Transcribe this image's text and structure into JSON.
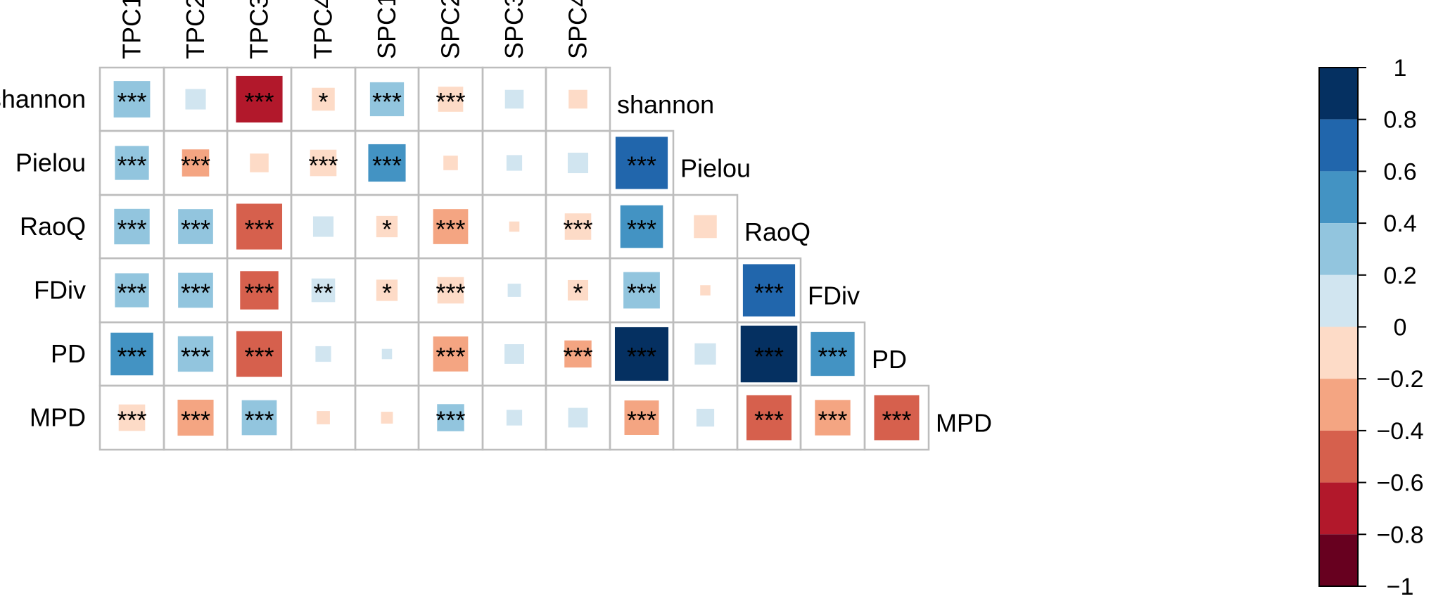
{
  "chart_data": {
    "type": "heatmap",
    "title": "",
    "columns": [
      "TPC1",
      "TPC2",
      "TPC3",
      "TPC4",
      "SPC1",
      "SPC2",
      "SPC3",
      "SPC4"
    ],
    "rows": [
      "shannon",
      "Pielou",
      "RaoQ",
      "FDiv",
      "PD",
      "MPD"
    ],
    "diagonal_labels": [
      "shannon",
      "Pielou",
      "RaoQ",
      "FDiv",
      "PD",
      "MPD"
    ],
    "value_range": [
      -1,
      1
    ],
    "colorbar": {
      "ticks": [
        "1",
        "0.8",
        "0.6",
        "0.4",
        "0.2",
        "0",
        "−0.2",
        "−0.4",
        "−0.6",
        "−0.8",
        "−1"
      ],
      "tick_values": [
        1,
        0.8,
        0.6,
        0.4,
        0.2,
        0,
        -0.2,
        -0.4,
        -0.6,
        -0.8,
        -1
      ],
      "bins": [
        {
          "from": 0.8,
          "to": 1.0,
          "color": "#053061"
        },
        {
          "from": 0.6,
          "to": 0.8,
          "color": "#2166AC"
        },
        {
          "from": 0.4,
          "to": 0.6,
          "color": "#4393C3"
        },
        {
          "from": 0.2,
          "to": 0.4,
          "color": "#92C5DE"
        },
        {
          "from": 0.0,
          "to": 0.2,
          "color": "#D1E5F0"
        },
        {
          "from": -0.2,
          "to": 0.0,
          "color": "#FDDBC7"
        },
        {
          "from": -0.4,
          "to": -0.2,
          "color": "#F4A582"
        },
        {
          "from": -0.6,
          "to": -0.4,
          "color": "#D6604D"
        },
        {
          "from": -0.8,
          "to": -0.6,
          "color": "#B2182B"
        },
        {
          "from": -1.0,
          "to": -0.8,
          "color": "#67001F"
        }
      ]
    },
    "cells": [
      [
        {
          "v": 0.38,
          "sig": "***"
        },
        {
          "v": 0.12,
          "sig": ""
        },
        {
          "v": -0.62,
          "sig": "***"
        },
        {
          "v": -0.15,
          "sig": "*"
        },
        {
          "v": 0.33,
          "sig": "***"
        },
        {
          "v": -0.18,
          "sig": "***"
        },
        {
          "v": 0.1,
          "sig": ""
        },
        {
          "v": -0.1,
          "sig": ""
        }
      ],
      [
        {
          "v": 0.33,
          "sig": "***"
        },
        {
          "v": -0.21,
          "sig": "***"
        },
        {
          "v": -0.1,
          "sig": ""
        },
        {
          "v": -0.2,
          "sig": "***"
        },
        {
          "v": 0.4,
          "sig": "***"
        },
        {
          "v": -0.06,
          "sig": ""
        },
        {
          "v": 0.07,
          "sig": ""
        },
        {
          "v": 0.12,
          "sig": ""
        }
      ],
      [
        {
          "v": 0.36,
          "sig": "***"
        },
        {
          "v": 0.35,
          "sig": "***"
        },
        {
          "v": -0.6,
          "sig": "***"
        },
        {
          "v": 0.12,
          "sig": ""
        },
        {
          "v": -0.13,
          "sig": "*"
        },
        {
          "v": -0.35,
          "sig": "***"
        },
        {
          "v": -0.03,
          "sig": ""
        },
        {
          "v": -0.2,
          "sig": "***"
        }
      ],
      [
        {
          "v": 0.33,
          "sig": "***"
        },
        {
          "v": 0.35,
          "sig": "***"
        },
        {
          "v": -0.42,
          "sig": "***"
        },
        {
          "v": 0.16,
          "sig": "**"
        },
        {
          "v": -0.13,
          "sig": "*"
        },
        {
          "v": -0.2,
          "sig": "***"
        },
        {
          "v": 0.05,
          "sig": ""
        },
        {
          "v": -0.12,
          "sig": "*"
        }
      ],
      [
        {
          "v": 0.52,
          "sig": "***"
        },
        {
          "v": 0.36,
          "sig": "***"
        },
        {
          "v": -0.6,
          "sig": "***"
        },
        {
          "v": 0.07,
          "sig": ""
        },
        {
          "v": 0.03,
          "sig": ""
        },
        {
          "v": -0.35,
          "sig": "***"
        },
        {
          "v": 0.11,
          "sig": ""
        },
        {
          "v": -0.21,
          "sig": "***"
        }
      ],
      [
        {
          "v": -0.2,
          "sig": "***"
        },
        {
          "v": -0.37,
          "sig": "***"
        },
        {
          "v": 0.35,
          "sig": "***"
        },
        {
          "v": -0.05,
          "sig": ""
        },
        {
          "v": -0.04,
          "sig": ""
        },
        {
          "v": 0.21,
          "sig": "***"
        },
        {
          "v": 0.07,
          "sig": ""
        },
        {
          "v": 0.11,
          "sig": ""
        }
      ]
    ],
    "lower_triangle": [
      [],
      [
        {
          "v": 0.78,
          "sig": "***"
        }
      ],
      [
        {
          "v": 0.52,
          "sig": "***"
        },
        {
          "v": -0.15,
          "sig": ""
        }
      ],
      [
        {
          "v": 0.38,
          "sig": "***"
        },
        {
          "v": -0.03,
          "sig": ""
        },
        {
          "v": 0.78,
          "sig": "***"
        }
      ],
      [
        {
          "v": 0.82,
          "sig": "***"
        },
        {
          "v": 0.13,
          "sig": ""
        },
        {
          "v": 0.92,
          "sig": "***"
        },
        {
          "v": 0.55,
          "sig": "***"
        }
      ],
      [
        {
          "v": -0.34,
          "sig": "***"
        },
        {
          "v": 0.09,
          "sig": ""
        },
        {
          "v": -0.58,
          "sig": "***"
        },
        {
          "v": -0.36,
          "sig": "***"
        },
        {
          "v": -0.58,
          "sig": "***"
        }
      ]
    ]
  }
}
